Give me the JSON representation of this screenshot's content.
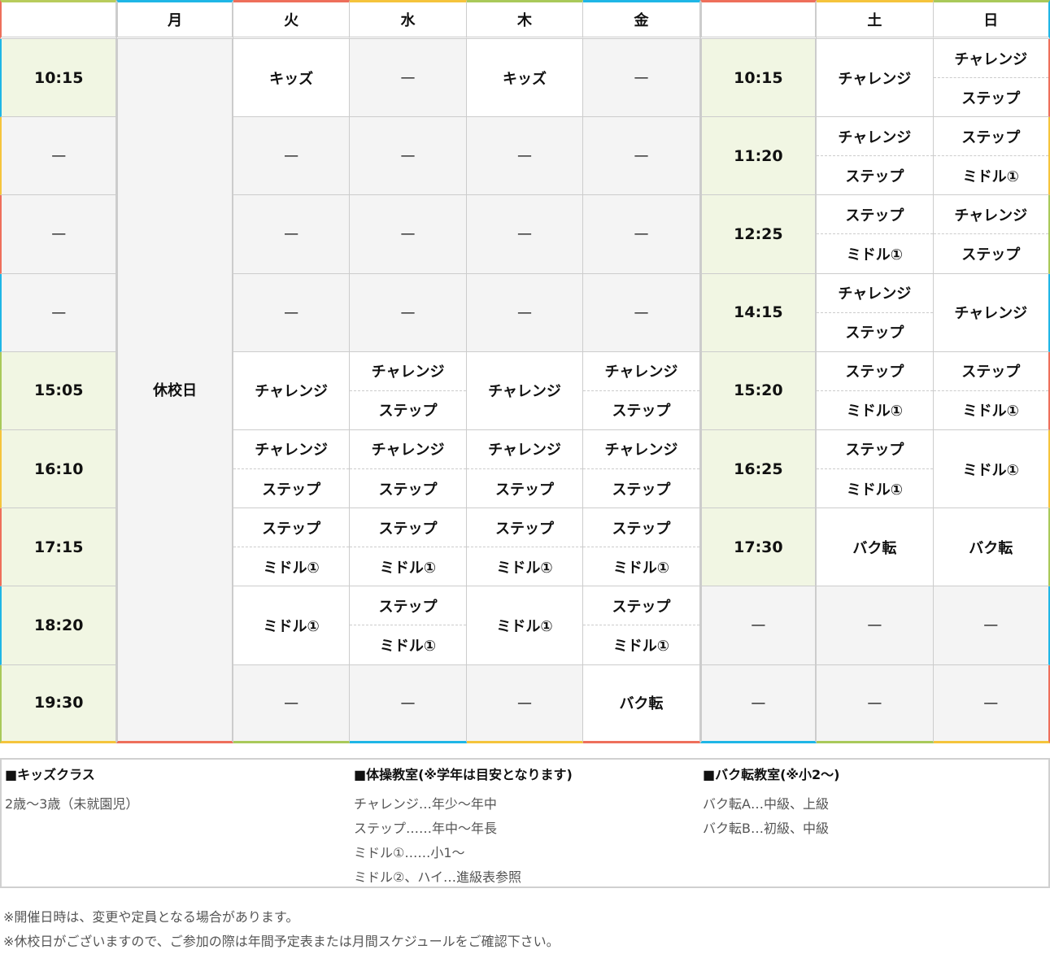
{
  "header": [
    "",
    "月",
    "火",
    "水",
    "木",
    "金",
    "",
    "土",
    "日"
  ],
  "closed_label": "休校日",
  "dash": "—",
  "rows": [
    {
      "time": "10:15",
      "week": [
        "キッズ",
        "—",
        "キッズ",
        "—"
      ],
      "wtime": "10:15",
      "sat": "チャレンジ",
      "sun": [
        "チャレンジ",
        "ステップ"
      ]
    },
    {
      "time": "—",
      "week": [
        "—",
        "—",
        "—",
        "—"
      ],
      "wtime": "11:20",
      "sat": [
        "チャレンジ",
        "ステップ"
      ],
      "sun": [
        "ステップ",
        "ミドル①"
      ]
    },
    {
      "time": "—",
      "week": [
        "—",
        "—",
        "—",
        "—"
      ],
      "wtime": "12:25",
      "sat": [
        "ステップ",
        "ミドル①"
      ],
      "sun": [
        "チャレンジ",
        "ステップ"
      ]
    },
    {
      "time": "—",
      "week": [
        "—",
        "—",
        "—",
        "—"
      ],
      "wtime": "14:15",
      "sat": [
        "チャレンジ",
        "ステップ"
      ],
      "sun": "チャレンジ"
    },
    {
      "time": "15:05",
      "week": [
        "チャレンジ",
        [
          "チャレンジ",
          "ステップ"
        ],
        "チャレンジ",
        [
          "チャレンジ",
          "ステップ"
        ]
      ],
      "wtime": "15:20",
      "sat": [
        "ステップ",
        "ミドル①"
      ],
      "sun": [
        "ステップ",
        "ミドル①"
      ]
    },
    {
      "time": "16:10",
      "week": [
        [
          "チャレンジ",
          "ステップ"
        ],
        [
          "チャレンジ",
          "ステップ"
        ],
        [
          "チャレンジ",
          "ステップ"
        ],
        [
          "チャレンジ",
          "ステップ"
        ]
      ],
      "wtime": "16:25",
      "sat": [
        "ステップ",
        "ミドル①"
      ],
      "sun": "ミドル①"
    },
    {
      "time": "17:15",
      "week": [
        [
          "ステップ",
          "ミドル①"
        ],
        [
          "ステップ",
          "ミドル①"
        ],
        [
          "ステップ",
          "ミドル①"
        ],
        [
          "ステップ",
          "ミドル①"
        ]
      ],
      "wtime": "17:30",
      "sat": "バク転",
      "sun": "バク転"
    },
    {
      "time": "18:20",
      "week": [
        "ミドル①",
        [
          "ステップ",
          "ミドル①"
        ],
        "ミドル①",
        [
          "ステップ",
          "ミドル①"
        ]
      ],
      "wtime": "—",
      "sat": "—",
      "sun": "—"
    },
    {
      "time": "19:30",
      "week": [
        "—",
        "—",
        "—",
        "バク転"
      ],
      "wtime": "—",
      "sat": "—",
      "sun": "—"
    }
  ],
  "colors": {
    "time_bg": "#f1f6e3",
    "empty_bg": "#f4f4f4",
    "top": [
      "#b8cc5c",
      "#1fb6e6",
      "#ee6f5b",
      "#f5c43c",
      "#a9c95a",
      "#1fb6e6",
      "#ee6f5b",
      "#f5c43c",
      "#a9c95a"
    ],
    "bottom": [
      "#f5c43c",
      "#ee6f5b",
      "#a9c95a",
      "#1fb6e6",
      "#f5c43c",
      "#ee6f5b",
      "#1fb6e6",
      "#a9c95a",
      "#f5c43c"
    ],
    "left": [
      "#ee6f5b",
      "#1fb6e6",
      "#f5c43c",
      "#ee6f5b",
      "#1fb6e6",
      "#a9c95a",
      "#f5c43c",
      "#ee6f5b",
      "#1fb6e6",
      "#a9c95a"
    ],
    "right": [
      "#1fb6e6",
      "#ee6f5b",
      "#f5c43c",
      "#a9c95a",
      "#1fb6e6",
      "#ee6f5b",
      "#f5c43c",
      "#a9c95a",
      "#1fb6e6",
      "#ee6f5b"
    ]
  },
  "notes": [
    {
      "title": "■キッズクラス",
      "lines": [
        "2歳〜3歳（未就園児）"
      ]
    },
    {
      "title": "■体操教室(※学年は目安となります)",
      "lines": [
        "チャレンジ…年少〜年中",
        "ステップ……年中〜年長",
        "ミドル①……小1〜",
        "ミドル②、ハイ…進級表参照"
      ]
    },
    {
      "title": "■バク転教室(※小2〜)",
      "lines": [
        "バク転A…中級、上級",
        "バク転B…初級、中級"
      ]
    }
  ],
  "footer": [
    "※開催日時は、変更や定員となる場合があります。",
    "※休校日がございますので、ご参加の際は年間予定表または月間スケジュールをご確認下さい。"
  ]
}
